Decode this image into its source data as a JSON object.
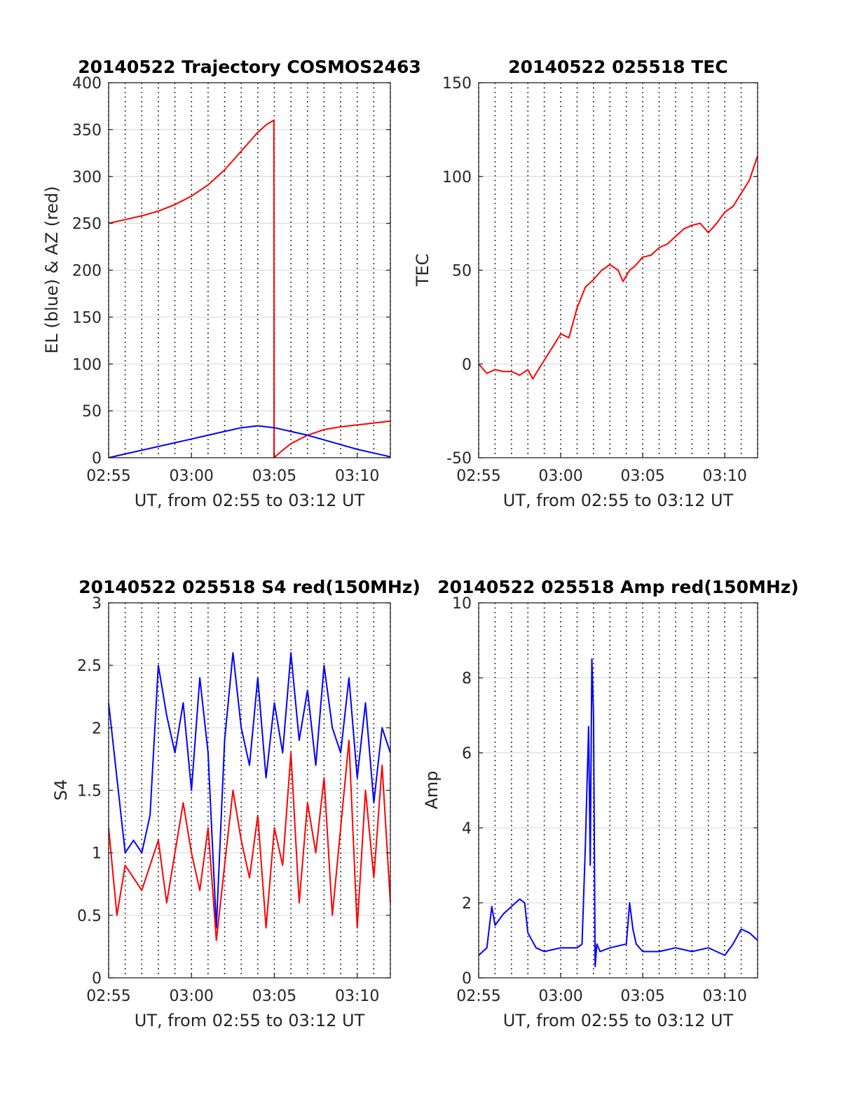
{
  "figure": {
    "panels_order": [
      "trajectory",
      "tec",
      "s4",
      "amp"
    ]
  },
  "chart_data": [
    {
      "id": "trajectory",
      "type": "line",
      "title": "20140522 Trajectory COSMOS2463",
      "xlabel": "UT, from 02:55 to 03:12 UT",
      "ylabel": "EL (blue) & AZ (red)",
      "x_unit": "minutes after 02:55 UT",
      "xlim": [
        0,
        17
      ],
      "ylim": [
        0,
        400
      ],
      "xticks": [
        0,
        5,
        10,
        15
      ],
      "xtick_labels": [
        "02:55",
        "03:00",
        "03:05",
        "03:10"
      ],
      "yticks": [
        0,
        50,
        100,
        150,
        200,
        250,
        300,
        350,
        400
      ],
      "ytick_labels": [
        "0",
        "50",
        "100",
        "150",
        "200",
        "250",
        "300",
        "350",
        "400"
      ],
      "grid": "horizontal solid at y ticks, vertical dotted every minute",
      "series": [
        {
          "name": "AZ",
          "color": "#ff0000",
          "x": [
            0,
            1,
            2,
            3,
            4,
            5,
            6,
            7,
            8,
            9,
            9.5,
            9.97,
            9.98,
            10.5,
            11,
            12,
            13,
            14,
            15,
            16,
            17
          ],
          "y": [
            250,
            254,
            258,
            263,
            270,
            279,
            291,
            307,
            327,
            347,
            355,
            360,
            0,
            8,
            15,
            24,
            30,
            33,
            35,
            37,
            39
          ]
        },
        {
          "name": "EL",
          "color": "#0000ff",
          "x": [
            0,
            1,
            2,
            3,
            4,
            5,
            6,
            7,
            8,
            9,
            10,
            11,
            12,
            13,
            14,
            15,
            16,
            17
          ],
          "y": [
            0,
            4,
            8,
            12,
            16,
            20,
            24,
            28,
            32,
            34,
            32,
            28,
            24,
            19,
            14,
            9,
            5,
            1
          ]
        }
      ]
    },
    {
      "id": "tec",
      "type": "line",
      "title": "20140522 025518 TEC",
      "xlabel": "UT, from 02:55 to 03:12 UT",
      "ylabel": "TEC",
      "x_unit": "minutes after 02:55 UT",
      "xlim": [
        0,
        17
      ],
      "ylim": [
        -50,
        150
      ],
      "xticks": [
        0,
        5,
        10,
        15
      ],
      "xtick_labels": [
        "02:55",
        "03:00",
        "03:05",
        "03:10"
      ],
      "yticks": [
        -50,
        0,
        50,
        100,
        150
      ],
      "ytick_labels": [
        "-50",
        "0",
        "50",
        "100",
        "150"
      ],
      "grid": "horizontal solid at y ticks, vertical dotted every minute",
      "series": [
        {
          "color": "#ff0000",
          "x": [
            0,
            0.5,
            1,
            1.5,
            2,
            2.5,
            3,
            3.3,
            3.5,
            4,
            4.5,
            5,
            5.5,
            6,
            6.5,
            7,
            7.5,
            8,
            8.5,
            8.8,
            9,
            9.2,
            9.5,
            10,
            10.5,
            11,
            11.5,
            12,
            12.5,
            13,
            13.5,
            14,
            14.5,
            15,
            15.5,
            16,
            16.5,
            17
          ],
          "y": [
            0,
            -5,
            -3,
            -4,
            -4,
            -6,
            -3,
            -8,
            -5,
            2,
            9,
            16,
            14,
            30,
            41,
            45,
            50,
            53,
            50,
            44,
            47,
            50,
            52,
            57,
            58,
            62,
            64,
            68,
            72,
            74,
            75,
            70,
            75,
            81,
            84,
            91,
            98,
            111
          ]
        }
      ]
    },
    {
      "id": "s4",
      "type": "line",
      "title": "20140522 025518 S4 red(150MHz)",
      "xlabel": "UT, from 02:55 to 03:12 UT",
      "ylabel": "S4",
      "x_unit": "minutes after 02:55 UT",
      "xlim": [
        0,
        17
      ],
      "ylim": [
        0,
        3
      ],
      "xticks": [
        0,
        5,
        10,
        15
      ],
      "xtick_labels": [
        "02:55",
        "03:00",
        "03:05",
        "03:10"
      ],
      "yticks": [
        0,
        0.5,
        1,
        1.5,
        2,
        2.5,
        3
      ],
      "ytick_labels": [
        "0",
        "0.5",
        "1",
        "1.5",
        "2",
        "2.5",
        "3"
      ],
      "grid": "horizontal solid at y ticks, vertical dotted every minute",
      "series": [
        {
          "color": "#0000ff",
          "x": [
            0,
            0.5,
            1,
            1.5,
            2,
            2.5,
            3,
            3.5,
            4,
            4.5,
            5,
            5.5,
            6,
            6.5,
            7,
            7.5,
            8,
            8.5,
            9,
            9.5,
            10,
            10.5,
            11,
            11.5,
            12,
            12.5,
            13,
            13.5,
            14,
            14.5,
            15,
            15.5,
            16,
            16.5,
            17
          ],
          "y": [
            2.2,
            1.6,
            1.0,
            1.1,
            1.0,
            1.3,
            2.5,
            2.1,
            1.8,
            2.2,
            1.5,
            2.4,
            1.8,
            0.4,
            1.9,
            2.6,
            2.0,
            1.7,
            2.4,
            1.6,
            2.2,
            1.8,
            2.6,
            1.9,
            2.3,
            1.7,
            2.5,
            2.0,
            1.8,
            2.4,
            1.6,
            2.2,
            1.4,
            2.0,
            1.8
          ]
        },
        {
          "color": "#ff0000",
          "x": [
            0,
            0.5,
            1,
            1.5,
            2,
            2.5,
            3,
            3.5,
            4,
            4.5,
            5,
            5.5,
            6,
            6.5,
            7,
            7.5,
            8,
            8.5,
            9,
            9.5,
            10,
            10.5,
            11,
            11.5,
            12,
            12.5,
            13,
            13.5,
            14,
            14.5,
            15,
            15.5,
            16,
            16.5,
            17
          ],
          "y": [
            1.2,
            0.5,
            0.9,
            0.8,
            0.7,
            0.9,
            1.1,
            0.6,
            1.0,
            1.4,
            1.0,
            0.7,
            1.2,
            0.3,
            0.9,
            1.5,
            1.1,
            0.8,
            1.3,
            0.4,
            1.2,
            0.9,
            1.8,
            0.6,
            1.4,
            1.0,
            1.6,
            0.5,
            1.2,
            1.9,
            0.4,
            1.5,
            0.8,
            1.7,
            0.6
          ]
        }
      ]
    },
    {
      "id": "amp",
      "type": "line",
      "title": "20140522 025518 Amp red(150MHz)",
      "xlabel": "UT, from 02:55 to 03:12 UT",
      "ylabel": "Amp",
      "x_unit": "minutes after 02:55 UT",
      "xlim": [
        0,
        17
      ],
      "ylim": [
        0,
        10
      ],
      "xticks": [
        0,
        5,
        10,
        15
      ],
      "xtick_labels": [
        "02:55",
        "03:00",
        "03:05",
        "03:10"
      ],
      "yticks": [
        0,
        2,
        4,
        6,
        8,
        10
      ],
      "ytick_labels": [
        "0",
        "2",
        "4",
        "6",
        "8",
        "10"
      ],
      "grid": "horizontal solid at y ticks, vertical dotted every minute",
      "series": [
        {
          "color": "#0000ff",
          "x": [
            0,
            0.5,
            0.8,
            1,
            1.5,
            2,
            2.5,
            2.8,
            3,
            3.5,
            4,
            5,
            6,
            6.3,
            6.5,
            6.7,
            6.8,
            6.9,
            7.0,
            7.1,
            7.2,
            7.4,
            8,
            9,
            9.2,
            9.4,
            9.6,
            10,
            11,
            12,
            13,
            14,
            15,
            15.5,
            16,
            16.5,
            17
          ],
          "y": [
            0.6,
            0.8,
            1.9,
            1.4,
            1.7,
            1.9,
            2.1,
            2.0,
            1.2,
            0.8,
            0.7,
            0.8,
            0.8,
            0.9,
            3.5,
            6.7,
            3.0,
            8.5,
            7.0,
            0.3,
            0.9,
            0.7,
            0.8,
            0.9,
            2.0,
            1.3,
            0.9,
            0.7,
            0.7,
            0.8,
            0.7,
            0.8,
            0.6,
            0.9,
            1.3,
            1.2,
            1.0
          ]
        }
      ]
    }
  ]
}
